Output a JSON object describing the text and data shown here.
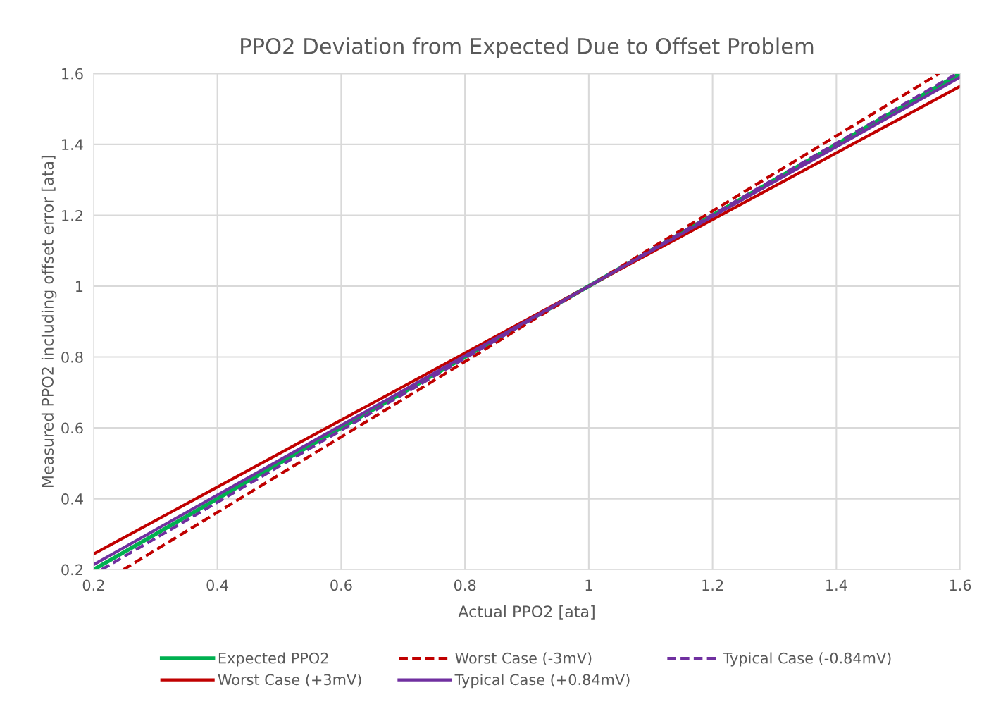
{
  "chart_data": {
    "type": "line",
    "title": "PPO2 Deviation from Expected Due to Offset Problem",
    "xlabel": "Actual PPO2 [ata]",
    "ylabel": "Measured PPO2 including offset error [ata]",
    "series": [
      {
        "name": "Expected PPO2",
        "color": "#00b050",
        "x": [
          0.2,
          1,
          1.6
        ],
        "values": [
          0.2,
          1,
          1.6
        ],
        "line_style": "solid"
      },
      {
        "name": "Worst Case (+3mV)",
        "color": "#c00000",
        "x": [
          0.2,
          1,
          1.6
        ],
        "values": [
          0.244,
          1,
          1.564
        ],
        "line_style": "solid"
      },
      {
        "name": "Worst Case (-3mV)",
        "color": "#c00000",
        "x": [
          0.248,
          1,
          1.566
        ],
        "values": [
          0.2,
          1,
          1.6
        ],
        "line_style": "dashed"
      },
      {
        "name": "Typical Case (+0.84mV)",
        "color": "#7030a0",
        "x": [
          0.2,
          1,
          1.6
        ],
        "values": [
          0.214,
          1,
          1.59
        ],
        "line_style": "solid"
      },
      {
        "name": "Typical Case (-0.84mV)",
        "color": "#7030a0",
        "x": [
          0.213,
          1,
          1.595
        ],
        "values": [
          0.2,
          1,
          1.6
        ],
        "line_style": "dashed"
      }
    ],
    "xlim": [
      0.2,
      1.6
    ],
    "xticks": [
      0.2,
      0.4,
      0.6,
      0.8,
      1,
      1.2,
      1.4,
      1.6
    ],
    "ylim": [
      0.2,
      1.6
    ],
    "yticks": [
      0.2,
      0.4,
      0.6,
      0.8,
      1,
      1.2,
      1.4,
      1.6
    ],
    "grid": true,
    "legend": "bottom",
    "marker": "none"
  }
}
